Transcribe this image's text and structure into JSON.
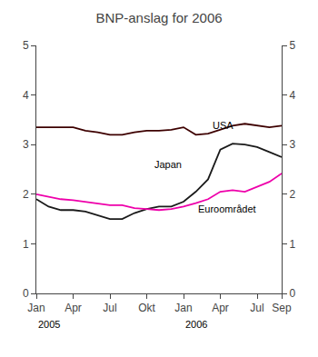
{
  "chart_data": {
    "type": "line",
    "title": "BNP-anslag for 2006",
    "categories": [
      "Jan",
      null,
      null,
      "Apr",
      null,
      null,
      "Jul",
      null,
      null,
      "Okt",
      null,
      null,
      "Jan",
      null,
      null,
      "Apr",
      null,
      null,
      "Jul",
      null,
      "Sep"
    ],
    "series": [
      {
        "name": "USA",
        "color": "#3d0000",
        "values": [
          3.35,
          3.35,
          3.35,
          3.35,
          3.28,
          3.25,
          3.2,
          3.2,
          3.25,
          3.28,
          3.28,
          3.3,
          3.35,
          3.2,
          3.22,
          3.3,
          3.38,
          3.42,
          3.38,
          3.35,
          3.38
        ]
      },
      {
        "name": "Japan",
        "color": "#1a1a1a",
        "values": [
          1.9,
          1.75,
          1.68,
          1.68,
          1.65,
          1.58,
          1.5,
          1.5,
          1.62,
          1.7,
          1.75,
          1.75,
          1.85,
          2.05,
          2.3,
          2.9,
          3.02,
          3.0,
          2.95,
          2.85,
          2.75
        ]
      },
      {
        "name": "Euroområdet",
        "color": "#ee00aa",
        "values": [
          2.0,
          1.95,
          1.9,
          1.88,
          1.85,
          1.82,
          1.78,
          1.78,
          1.72,
          1.7,
          1.68,
          1.7,
          1.75,
          1.82,
          1.9,
          2.05,
          2.08,
          2.05,
          2.15,
          2.25,
          2.42
        ]
      }
    ],
    "ylim": [
      0,
      5
    ],
    "yticks": [
      0,
      1,
      2,
      3,
      4,
      5
    ],
    "y2lim": [
      0,
      5
    ],
    "y2ticks": [
      0,
      1,
      2,
      3,
      4,
      5
    ],
    "annotations": [
      {
        "text": "USA",
        "x": 14.2,
        "y": 3.24
      },
      {
        "text": "Japan",
        "x": 9.5,
        "y": 2.45
      },
      {
        "text": "Euroområdet",
        "x": 13.0,
        "y": 1.55
      },
      {
        "text": "2005",
        "x": 0
      },
      {
        "text": "2006",
        "x": 12
      }
    ],
    "grid": false
  }
}
